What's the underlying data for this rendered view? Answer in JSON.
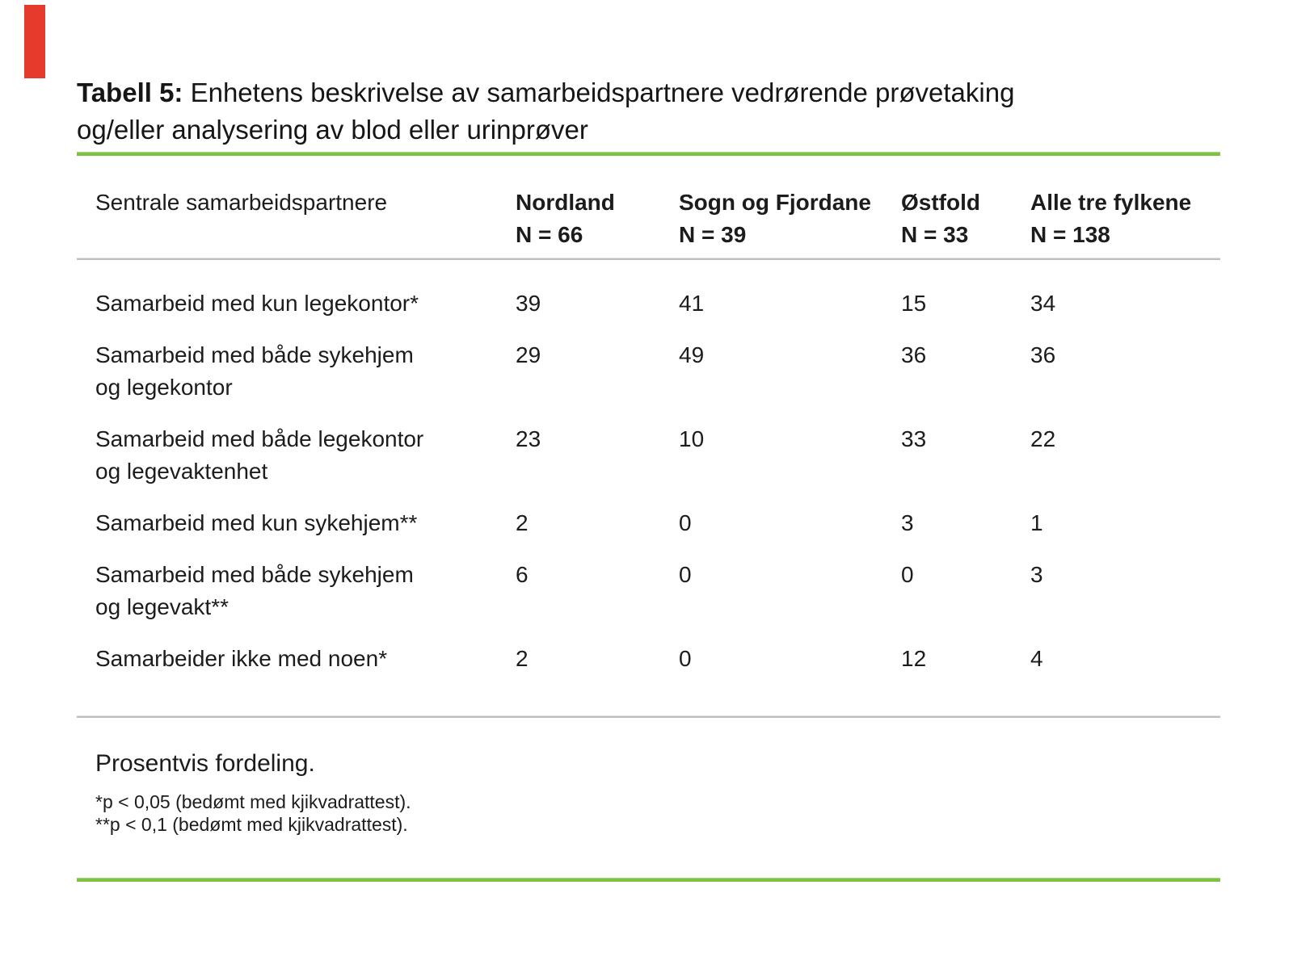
{
  "accents": {
    "green_rule_color": "#7dc242",
    "red_bar_color": "#e63a2c",
    "gray_rule_color": "#bdbdbd"
  },
  "title": {
    "bold": "Tabell 5:",
    "rest": " Enhetens beskrivelse av samarbeidspartnere vedrørende prøvetaking\nog/eller analysering av blod eller urinprøver"
  },
  "table": {
    "header": {
      "label": "Sentrale samarbeidspartnere",
      "columns": [
        {
          "name": "Nordland",
          "n": "N = 66"
        },
        {
          "name": "Sogn og Fjordane",
          "n": "N = 39"
        },
        {
          "name": "Østfold",
          "n": "N = 33"
        },
        {
          "name": "Alle tre fylkene",
          "n": "N = 138"
        }
      ]
    },
    "rows": [
      {
        "label": "Samarbeid med kun legekontor*",
        "values": [
          "39",
          "41",
          "15",
          "34"
        ]
      },
      {
        "label": "Samarbeid med både sykehjem\nog legekontor",
        "values": [
          "29",
          "49",
          "36",
          "36"
        ]
      },
      {
        "label": "Samarbeid med både legekontor\nog legevaktenhet",
        "values": [
          "23",
          "10",
          "33",
          "22"
        ]
      },
      {
        "label": "Samarbeid med kun sykehjem**",
        "values": [
          "2",
          "0",
          "3",
          "1"
        ]
      },
      {
        "label": "Samarbeid med både sykehjem\nog legevakt**",
        "values": [
          "6",
          "0",
          "0",
          "3"
        ]
      },
      {
        "label": "Samarbeider ikke med noen*",
        "values": [
          "2",
          "0",
          "12",
          "4"
        ]
      }
    ]
  },
  "footer": {
    "note": "Prosentvis fordeling.",
    "footnotes": [
      "*p < 0,05 (bedømt med kjikvadrattest).",
      "**p < 0,1 (bedømt med kjikvadrattest)."
    ]
  }
}
